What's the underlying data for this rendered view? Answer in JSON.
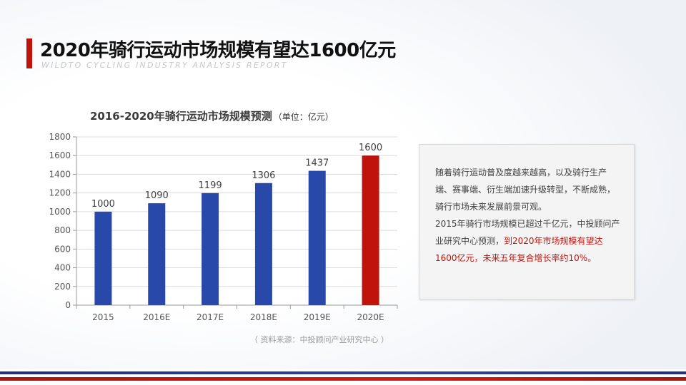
{
  "header": {
    "title": "2020年骑行运动市场规模有望达1600亿元",
    "subtitle": "WILDTO CYCLING INDUSTRY ANALYSIS REPORT"
  },
  "chart_data": {
    "type": "bar",
    "title": "2016-2020年骑行运动市场规模预测",
    "unit_label": "（单位：亿元）",
    "categories": [
      "2015",
      "2016E",
      "2017E",
      "2018E",
      "2019E",
      "2020E"
    ],
    "values": [
      1000,
      1090,
      1199,
      1306,
      1437,
      1600
    ],
    "data_labels": [
      "1000",
      "1090",
      "1199",
      "1306",
      "1437",
      "1600"
    ],
    "ylim": [
      0,
      1800
    ],
    "yticks": [
      0,
      200,
      400,
      600,
      800,
      1000,
      1200,
      1400,
      1600,
      1800
    ],
    "grid": true,
    "bar_colors": [
      "#2849aa",
      "#2849aa",
      "#2849aa",
      "#2849aa",
      "#2849aa",
      "#c0130c"
    ]
  },
  "source": "（ 资料来源：中投顾问产业研究中心 ）",
  "note": {
    "p1": "随着骑行运动普及度越来越高，以及骑行生产端、赛事端、衍生端加速升级转型，不断成熟，骑行市场未来发展前景可观。",
    "p2_plain": "2015年骑行市场规模已超过千亿元，中投顾问产业研究中心预测，",
    "p2_highlight": "到2020年市场规模有望达1600亿元，未来五年复合增长率约10%。"
  },
  "colors": {
    "accent_red": "#c0130c",
    "bar_blue": "#2849aa",
    "stripe_blue": "#2b43a7"
  }
}
